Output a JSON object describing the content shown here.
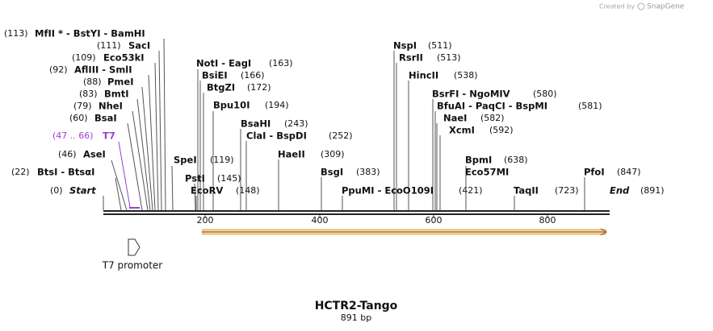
{
  "header": {
    "credit": "Created by",
    "brand": "SnapGene"
  },
  "sites": [
    {
      "position": "(113)",
      "name": "MfII * - BstYI - BamHI"
    },
    {
      "position": "(111)",
      "name": "SacI"
    },
    {
      "position": "(109)",
      "name": "Eco53kI"
    },
    {
      "position": "(92)",
      "name": "AflIII - SmlI"
    },
    {
      "position": "(88)",
      "name": "PmeI"
    },
    {
      "position": "(83)",
      "name": "BmtI"
    },
    {
      "position": "(79)",
      "name": "NheI"
    },
    {
      "position": "(60)",
      "name": "BsaI"
    },
    {
      "position": "(47 .. 66)",
      "name": "T7"
    },
    {
      "position": "(46)",
      "name": "AseI"
    },
    {
      "position": "(22)",
      "name": "BtsI - BtsαI"
    },
    {
      "position": "(0)",
      "name": "Start"
    },
    {
      "position": "(163)",
      "name": "NotI - EagI"
    },
    {
      "position": "(166)",
      "name": "BsiEI"
    },
    {
      "position": "(172)",
      "name": "BtgZI"
    },
    {
      "position": "(194)",
      "name": "Bpu10I"
    },
    {
      "position": "(243)",
      "name": "BsaHI"
    },
    {
      "position": "(252)",
      "name": "ClaI - BspDI"
    },
    {
      "position": "(309)",
      "name": "HaeII"
    },
    {
      "position": "(119)",
      "name": "SpeI"
    },
    {
      "position": "(145)",
      "name": "PstI"
    },
    {
      "position": "(148)",
      "name": "EcoRV"
    },
    {
      "position": "(383)",
      "name": "BsgI"
    },
    {
      "position": "(421)",
      "name": "PpuMI - EcoO109I"
    },
    {
      "position": "(511)",
      "name": "NspI"
    },
    {
      "position": "(513)",
      "name": "RsrII"
    },
    {
      "position": "(538)",
      "name": "HincII"
    },
    {
      "position": "(580)",
      "name": "BsrFI - NgoMIV"
    },
    {
      "position": "(581)",
      "name": "BfuAI - PaqCI - BspMI"
    },
    {
      "position": "(582)",
      "name": "NaeI"
    },
    {
      "position": "(592)",
      "name": "XcmI"
    },
    {
      "position": "(638)",
      "name": "BpmI - Eco57MI"
    },
    {
      "position": "(723)",
      "name": "TaqII"
    },
    {
      "position": "(847)",
      "name": "PfoI"
    },
    {
      "position": "(891)",
      "name": "End"
    }
  ],
  "ruler": [
    200,
    400,
    600,
    800
  ],
  "feature": {
    "label": "T7 promoter"
  },
  "footer": {
    "title": "HCTR2-Tango",
    "length": "891 bp"
  }
}
